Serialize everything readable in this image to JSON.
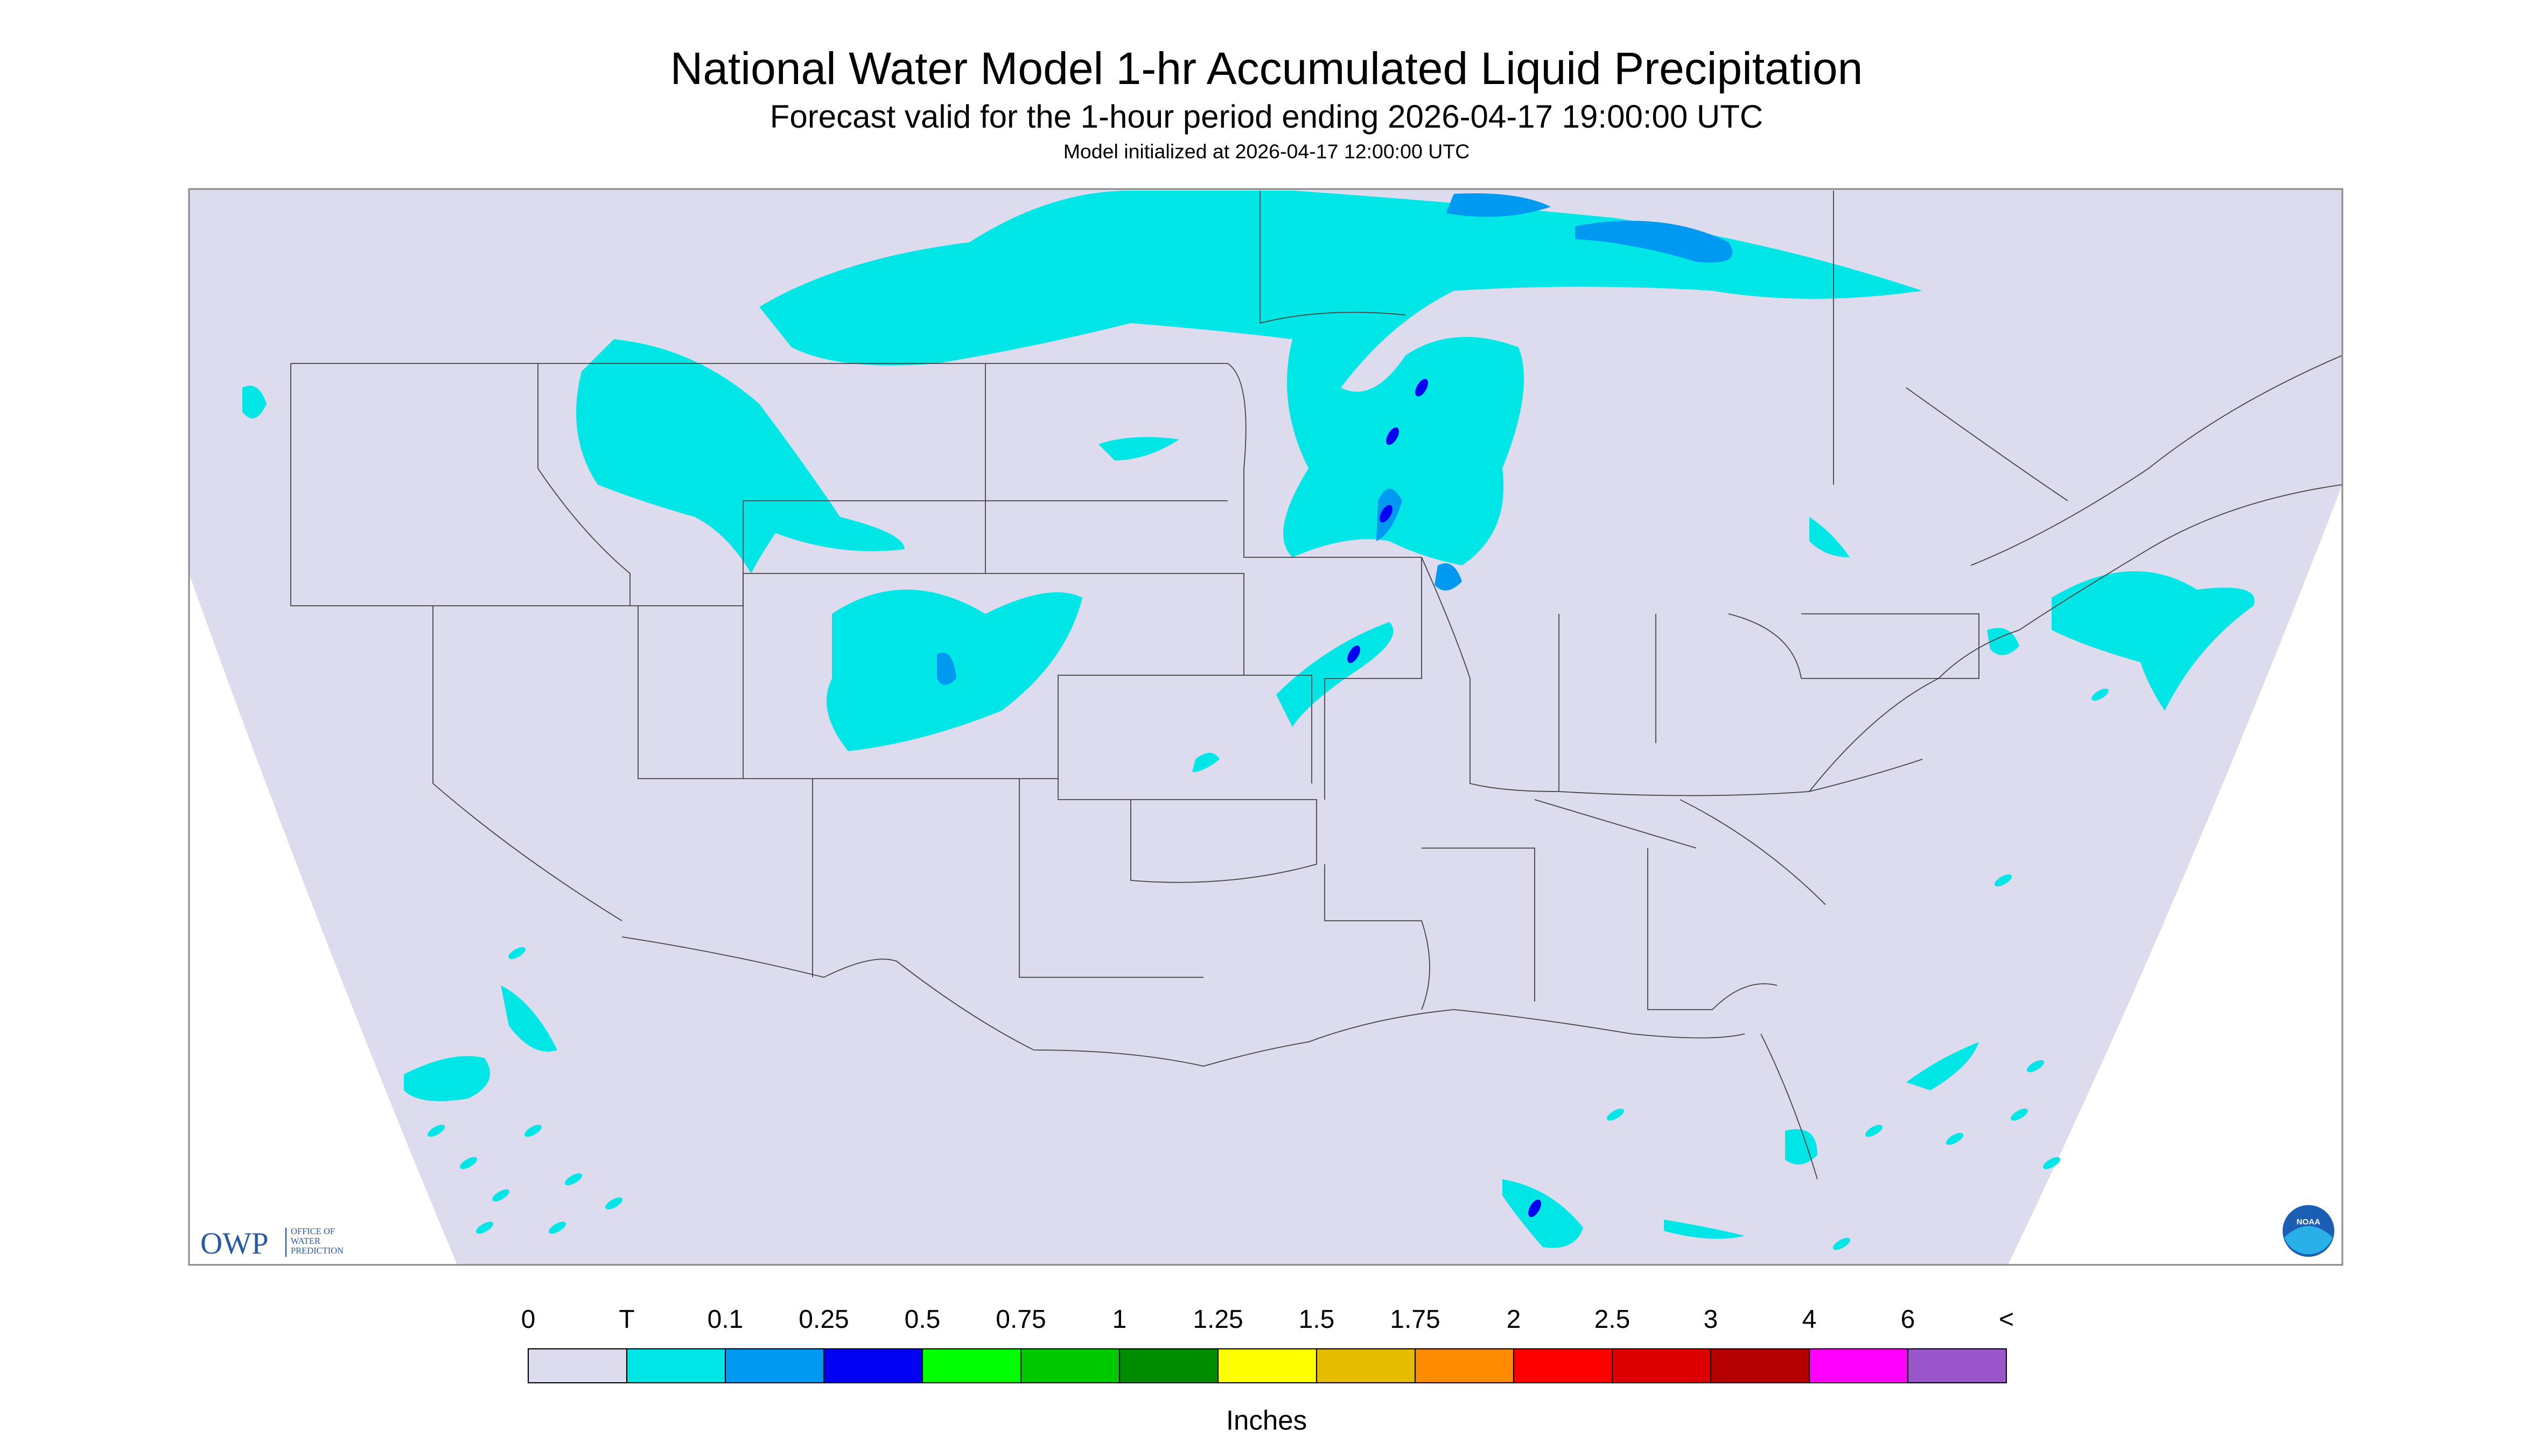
{
  "header": {
    "title": "National Water Model 1-hr Accumulated Liquid Precipitation",
    "subtitle": "Forecast valid for the 1-hour period ending 2026-04-17 19:00:00 UTC",
    "initialized": "Model initialized at 2026-04-17 12:00:00 UTC"
  },
  "legend": {
    "labels": [
      "0",
      "T",
      "0.1",
      "0.25",
      "0.5",
      "0.75",
      "1",
      "1.25",
      "1.5",
      "1.75",
      "2",
      "2.5",
      "3",
      "4",
      "6",
      "<"
    ],
    "colors": [
      "#dcdcee",
      "#00e6e6",
      "#0099f2",
      "#0000f2",
      "#00ff00",
      "#00c800",
      "#008c00",
      "#ffff00",
      "#e6bc00",
      "#ff8c00",
      "#ff0000",
      "#dc0000",
      "#b40000",
      "#ff00ff",
      "#9955c9"
    ],
    "unit": "Inches"
  },
  "logos": {
    "owp": "OWP",
    "owp_line1": "OFFICE OF",
    "owp_line2": "WATER",
    "owp_line3": "PREDICTION",
    "noaa": "NOAA"
  }
}
